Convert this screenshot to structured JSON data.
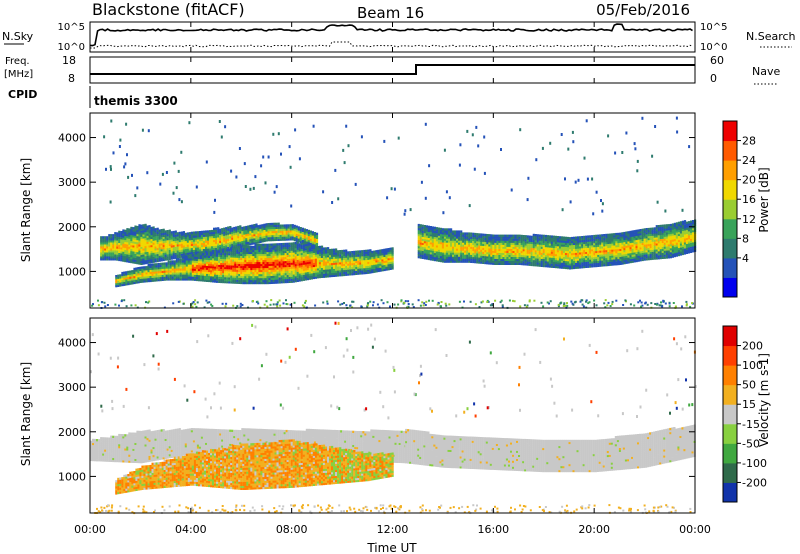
{
  "header": {
    "title": "Blackstone (fitACF)",
    "beam": "Beam 16",
    "date": "05/Feb/2016"
  },
  "noise_panel": {
    "left_label": "N.Sky",
    "left_ticks": [
      "10^5",
      "10^0"
    ],
    "right_ticks": [
      "10^5",
      "10^0"
    ],
    "right_label": "N.Search"
  },
  "freq_panel": {
    "left_label_1": "Freq.",
    "left_label_2": "[MHz]",
    "left_ticks": [
      "18",
      "8"
    ],
    "right_ticks": [
      "60",
      "0"
    ],
    "right_label": "Nave"
  },
  "cpid_panel": {
    "label": "CPID",
    "mode": "themis 3300"
  },
  "x_axis": {
    "label": "Time UT",
    "ticks": [
      "00:00",
      "04:00",
      "08:00",
      "12:00",
      "16:00",
      "20:00",
      "00:00"
    ]
  },
  "chart_data": [
    {
      "type": "heatmap",
      "title": "",
      "ylabel": "Slant Range [km]",
      "xlabel": "Time UT",
      "ylim": [
        180,
        4550
      ],
      "xlim_hours": [
        0,
        24
      ],
      "yticks": [
        1000,
        2000,
        3000,
        4000
      ],
      "colorbar": {
        "label": "Power [dB]",
        "ticks": [
          "28",
          "24",
          "20",
          "16",
          "12",
          "8",
          "4"
        ],
        "colors": [
          "#0000ee",
          "#2452b8",
          "#2e7b6e",
          "#39a35a",
          "#9acd32",
          "#f0d800",
          "#ff9f00",
          "#ff5a00",
          "#ee0000"
        ]
      },
      "bands": [
        {
          "name": "main",
          "t": [
            0.4,
            1.0,
            2.0,
            3.0,
            4.0,
            5.0,
            6.0,
            7.0,
            8.0,
            8.5,
            9.0
          ],
          "lower": [
            1250,
            1250,
            1150,
            1250,
            1350,
            1400,
            1550,
            1680,
            1700,
            1600,
            1500
          ],
          "upper": [
            1750,
            1850,
            2050,
            1900,
            1850,
            1950,
            2000,
            2050,
            2050,
            1950,
            1850
          ]
        },
        {
          "name": "lower",
          "t": [
            1.0,
            2.0,
            3.0,
            4.0,
            5.0,
            6.0,
            7.0,
            8.0,
            9.0,
            10.0,
            11.0,
            12.0
          ],
          "lower": [
            650,
            750,
            800,
            800,
            750,
            720,
            720,
            750,
            850,
            900,
            950,
            1050
          ],
          "upper": [
            900,
            1100,
            1200,
            1350,
            1450,
            1550,
            1600,
            1650,
            1550,
            1450,
            1450,
            1500
          ]
        },
        {
          "name": "after-noon",
          "t": [
            13.0,
            14.0,
            15.0,
            16.0,
            17.0,
            18.0,
            19.0,
            20.0,
            21.0,
            22.0,
            23.0,
            24.0
          ],
          "lower": [
            1300,
            1200,
            1200,
            1150,
            1150,
            1100,
            1050,
            1100,
            1150,
            1250,
            1300,
            1450
          ],
          "upper": [
            2050,
            1950,
            1850,
            1800,
            1800,
            1800,
            1750,
            1800,
            1850,
            1950,
            2050,
            2150
          ]
        }
      ]
    },
    {
      "type": "heatmap",
      "title": "",
      "ylabel": "Slant Range [km]",
      "xlabel": "Time UT",
      "ylim": [
        180,
        4550
      ],
      "xlim_hours": [
        0,
        24
      ],
      "yticks": [
        1000,
        2000,
        3000,
        4000
      ],
      "colorbar": {
        "label": "Velocity [m s-1]",
        "ticks": [
          "200",
          "100",
          "50",
          "15",
          "-15",
          "-50",
          "-100",
          "-200"
        ],
        "colors": [
          "#1133aa",
          "#2f6a4a",
          "#40a840",
          "#88d040",
          "#c8c8c8",
          "#f2b020",
          "#ff8000",
          "#ff4000",
          "#e00000"
        ]
      },
      "bands": [
        {
          "name": "ground-scatter-main",
          "t": [
            0.0,
            2.0,
            4.0,
            12.5
          ],
          "lower": [
            1350,
            1300,
            1500,
            1300
          ],
          "upper": [
            1800,
            2000,
            2050,
            2000
          ],
          "kind": "ground"
        },
        {
          "name": "negative-velocity",
          "t": [
            1.0,
            2.0,
            4.0,
            6.0,
            8.0,
            9.0,
            10.0,
            11.0,
            12.0
          ],
          "lower": [
            600,
            700,
            800,
            700,
            750,
            800,
            850,
            900,
            1000
          ],
          "upper": [
            900,
            1200,
            1500,
            1700,
            1800,
            1700,
            1600,
            1500,
            1500
          ],
          "kind": "negative"
        },
        {
          "name": "ground-scatter-late",
          "t": [
            12.5,
            14.0,
            16.0,
            18.0,
            20.0,
            22.0,
            24.0
          ],
          "lower": [
            1300,
            1200,
            1150,
            1100,
            1100,
            1200,
            1450
          ],
          "upper": [
            2050,
            1900,
            1850,
            1800,
            1800,
            1950,
            2150
          ],
          "kind": "ground"
        }
      ]
    }
  ]
}
